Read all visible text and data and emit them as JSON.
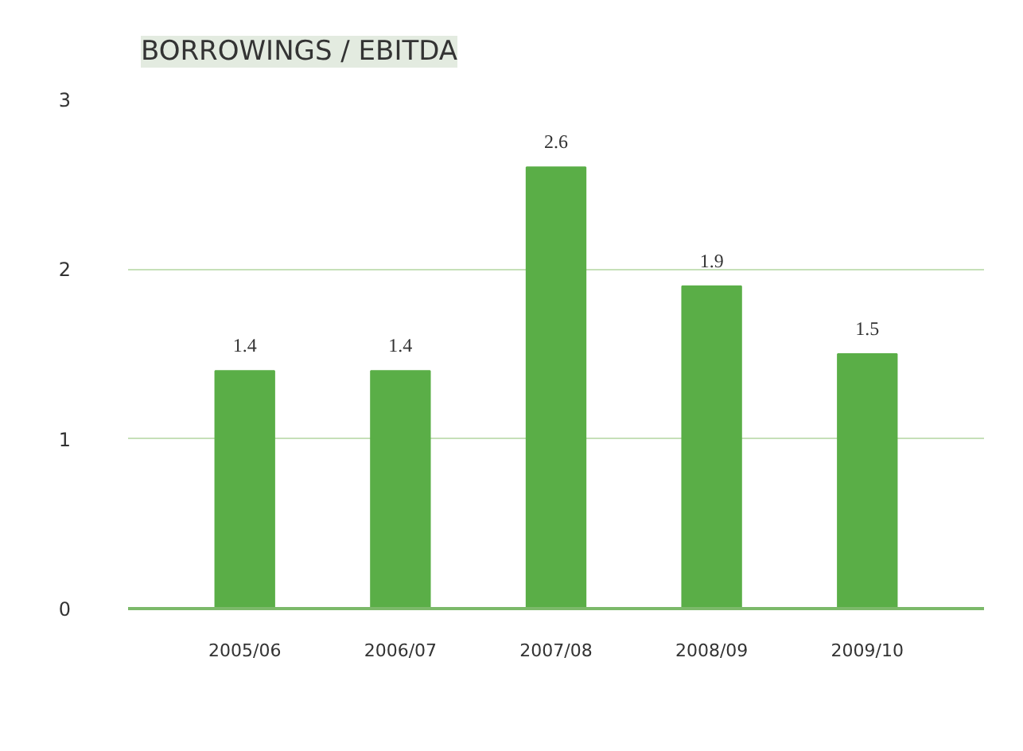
{
  "chart_data": {
    "type": "bar",
    "title": "BORROWINGS / EBITDA",
    "categories": [
      "2005/06",
      "2006/07",
      "2007/08",
      "2008/09",
      "2009/10"
    ],
    "values": [
      1.4,
      1.4,
      2.6,
      1.9,
      1.5
    ],
    "color": "#5aae47",
    "ylim": [
      0,
      3
    ],
    "yticks": [
      0,
      1,
      2,
      3
    ],
    "grid": "y",
    "data_labels": true
  }
}
